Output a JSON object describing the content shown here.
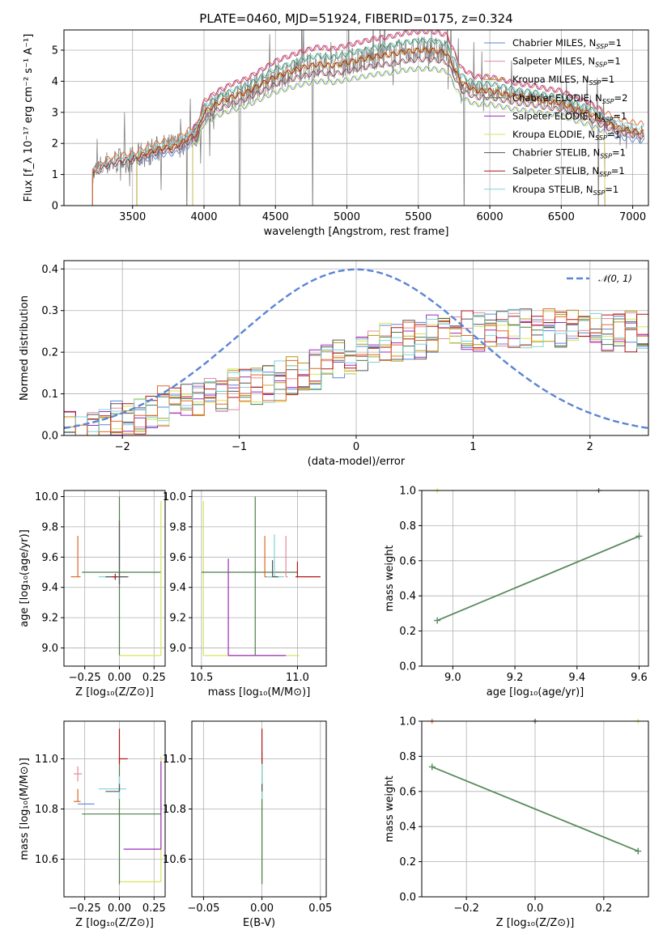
{
  "colors": {
    "chabrier_miles": "#5b84d6",
    "salpeter_miles": "#e8889d",
    "kroupa_miles": "#b19a17",
    "chabrier_elodie": "#4d7c4a",
    "salpeter_elodie": "#9b2bc0",
    "kroupa_elodie": "#d8e35a",
    "chabrier_stelib": "#555555",
    "salpeter_stelib": "#b01515",
    "kroupa_stelib": "#7fd3d8",
    "orange": "#e0692a",
    "data": "#808080",
    "gauss": "#5b84d6",
    "green_line": "#5a8a5e"
  },
  "chart_data": [
    {
      "id": "spectrum",
      "type": "line",
      "title": "PLATE=0460, MJD=51924, FIBERID=0175, z=0.324",
      "xlabel": "wavelength [Angstrom, rest frame]",
      "ylabel": "Flux [f_λ 10⁻¹⁷ erg cm⁻² s⁻¹ A⁻¹]",
      "xlim": [
        3020,
        7110
      ],
      "ylim": [
        0,
        5.65
      ],
      "xticks": [
        "3500",
        "4000",
        "4500",
        "5000",
        "5500",
        "6000",
        "6500",
        "7000"
      ],
      "yticks": [
        "0",
        "1",
        "2",
        "3",
        "4",
        "5"
      ],
      "legend_position": "upper-right",
      "legend": [
        {
          "label": "Chabrier MILES, N",
          "sub": "SSP",
          "tail": "=1",
          "color_key": "chabrier_miles"
        },
        {
          "label": "Salpeter MILES, N",
          "sub": "SSP",
          "tail": "=1",
          "color_key": "salpeter_miles"
        },
        {
          "label": "Kroupa MILES, N",
          "sub": "SSP",
          "tail": "=1",
          "color_key": "kroupa_miles"
        },
        {
          "label": "Chabrier ELODIE, N",
          "sub": "SSP",
          "tail": "=2",
          "color_key": "chabrier_elodie"
        },
        {
          "label": "Salpeter ELODIE, N",
          "sub": "SSP",
          "tail": "=1",
          "color_key": "salpeter_elodie"
        },
        {
          "label": "Kroupa ELODIE, N",
          "sub": "SSP",
          "tail": "=1",
          "color_key": "kroupa_elodie"
        },
        {
          "label": "Chabrier STELIB, N",
          "sub": "SSP",
          "tail": "=1",
          "color_key": "chabrier_stelib"
        },
        {
          "label": "Salpeter STELIB, N",
          "sub": "SSP",
          "tail": "=1",
          "color_key": "salpeter_stelib"
        },
        {
          "label": "Kroupa STELIB, N",
          "sub": "SSP",
          "tail": "=1",
          "color_key": "kroupa_stelib"
        }
      ],
      "continuum_x": [
        3220,
        3300,
        3400,
        3500,
        3600,
        3700,
        3800,
        3900,
        3950,
        4000,
        4100,
        4200,
        4300,
        4400,
        4500,
        4600,
        4700,
        4800,
        4900,
        5000,
        5100,
        5200,
        5300,
        5400,
        5500,
        5600,
        5700,
        5800,
        5900,
        6000,
        6100,
        6200,
        6300,
        6400,
        6500,
        6600,
        6700,
        6800,
        6900,
        7000,
        7080
      ],
      "continuum_y": [
        1.0,
        1.3,
        1.45,
        1.5,
        1.7,
        1.85,
        1.9,
        2.2,
        2.3,
        3.0,
        3.3,
        3.5,
        3.65,
        3.9,
        4.15,
        4.3,
        4.45,
        4.55,
        4.5,
        4.6,
        4.7,
        4.8,
        4.85,
        4.95,
        5.0,
        5.0,
        4.9,
        3.95,
        3.7,
        3.7,
        3.6,
        3.5,
        3.45,
        3.35,
        3.3,
        3.1,
        2.95,
        2.7,
        2.5,
        2.4,
        2.35
      ],
      "data_dropouts": [
        3210,
        3880,
        4250,
        4760,
        5820,
        6760
      ]
    },
    {
      "id": "residuals",
      "type": "histogram",
      "xlabel": "(data-model)/error",
      "ylabel": "Normed distribution",
      "xlim": [
        -2.5,
        2.5
      ],
      "ylim": [
        0,
        0.42
      ],
      "xticks": [
        "−2",
        "−1",
        "0",
        "1",
        "2"
      ],
      "yticks": [
        "0.0",
        "0.1",
        "0.2",
        "0.3",
        "0.4"
      ],
      "legend": [
        {
          "label": "𝒩(0, 1)",
          "color_key": "gauss"
        }
      ],
      "bin_width": 0.1,
      "bin_start": -2.5,
      "base_profile": [
        0.01,
        0.01,
        0.02,
        0.03,
        0.04,
        0.04,
        0.05,
        0.06,
        0.07,
        0.07,
        0.08,
        0.08,
        0.09,
        0.1,
        0.11,
        0.11,
        0.12,
        0.12,
        0.13,
        0.14,
        0.15,
        0.16,
        0.17,
        0.18,
        0.19,
        0.2,
        0.21,
        0.22,
        0.22,
        0.23,
        0.23,
        0.24,
        0.24,
        0.25,
        0.25,
        0.25,
        0.26,
        0.26,
        0.26,
        0.26,
        0.26,
        0.26,
        0.26,
        0.26,
        0.26,
        0.26,
        0.25,
        0.25,
        0.25,
        0.25
      ]
    },
    {
      "id": "age_vs_Z",
      "type": "errorbar",
      "xlabel": "Z [log₁₀(Z/Z⊙)]",
      "ylabel": "age  [log₁₀(age/yr)]",
      "xlim": [
        -0.4,
        0.33
      ],
      "ylim": [
        8.88,
        10.04
      ],
      "xticks": [
        "−0.25",
        "0.00",
        "0.25"
      ],
      "yticks": [
        "9.0",
        "9.2",
        "9.4",
        "9.6",
        "9.8",
        "10.0"
      ],
      "points": [
        {
          "color_key": "orange",
          "x": -0.3,
          "xerr": [
            0.05,
            0.02
          ],
          "y": 9.47,
          "yerr": [
            0.0,
            0.27
          ]
        },
        {
          "color_key": "chabrier_elodie",
          "x": 0.0,
          "xerr": [
            0.27,
            0.3
          ],
          "y": 9.5,
          "yerr": [
            0.55,
            0.5
          ]
        },
        {
          "color_key": "kroupa_elodie",
          "x": 0.3,
          "xerr": [
            0.3,
            0.0
          ],
          "y": 8.95,
          "yerr": [
            0.0,
            1.02
          ]
        },
        {
          "color_key": "kroupa_stelib",
          "x": 0.0,
          "xerr": [
            0.15,
            0.07
          ],
          "y": 9.47,
          "yerr": [
            0.03,
            0.28
          ]
        },
        {
          "color_key": "chabrier_stelib",
          "x": 0.0,
          "xerr": [
            0.1,
            0.06
          ],
          "y": 9.47,
          "yerr": [
            0.05,
            0.37
          ]
        },
        {
          "color_key": "salpeter_stelib",
          "x": -0.03,
          "xerr": [
            0.02,
            0.01
          ],
          "y": 9.47,
          "yerr": [
            0.02,
            0.02
          ]
        }
      ]
    },
    {
      "id": "age_vs_mass",
      "type": "errorbar",
      "xlabel": "mass [log₁₀(M/M⊙)]",
      "ylabel": "",
      "xlim": [
        10.45,
        11.15
      ],
      "ylim": [
        8.88,
        10.04
      ],
      "xticks": [
        "10.5",
        "11.0"
      ],
      "yticks": [
        "9.0",
        "9.2",
        "9.4",
        "9.6",
        "9.8",
        "10.0"
      ],
      "points": [
        {
          "color_key": "kroupa_elodie",
          "x": 10.51,
          "xerr": [
            0.0,
            0.5
          ],
          "y": 8.95,
          "yerr": [
            0.0,
            1.02
          ]
        },
        {
          "color_key": "salpeter_elodie",
          "x": 10.64,
          "xerr": [
            0.0,
            0.3
          ],
          "y": 8.95,
          "yerr": [
            0.0,
            0.64
          ]
        },
        {
          "color_key": "chabrier_elodie",
          "x": 10.78,
          "xerr": [
            0.28,
            0.22
          ],
          "y": 9.5,
          "yerr": [
            0.55,
            0.5
          ]
        },
        {
          "color_key": "orange",
          "x": 10.83,
          "xerr": [
            0.0,
            0.05
          ],
          "y": 9.47,
          "yerr": [
            0.0,
            0.27
          ]
        },
        {
          "color_key": "kroupa_stelib",
          "x": 10.88,
          "xerr": [
            0.04,
            0.05
          ],
          "y": 9.47,
          "yerr": [
            0.0,
            0.28
          ]
        },
        {
          "color_key": "salpeter_miles",
          "x": 10.94,
          "xerr": [
            0.0,
            0.01
          ],
          "y": 9.47,
          "yerr": [
            0.0,
            0.27
          ]
        },
        {
          "color_key": "salpeter_stelib",
          "x": 11.0,
          "xerr": [
            0.01,
            0.12
          ],
          "y": 9.47,
          "yerr": [
            0.0,
            0.1
          ]
        },
        {
          "color_key": "chabrier_stelib",
          "x": 10.87,
          "xerr": [
            0.0,
            0.03
          ],
          "y": 9.47,
          "yerr": [
            0.0,
            0.11
          ]
        }
      ]
    },
    {
      "id": "weight_vs_age",
      "type": "line",
      "xlabel": "age  [log₁₀(age/yr)]",
      "ylabel": "mass weight",
      "xlim": [
        8.9,
        9.63
      ],
      "ylim": [
        0.0,
        1.0
      ],
      "xticks": [
        "9.0",
        "9.2",
        "9.4",
        "9.6"
      ],
      "yticks": [
        "0.0",
        "0.2",
        "0.4",
        "0.6",
        "0.8",
        "1.0"
      ],
      "series": [
        {
          "color_key": "chabrier_elodie",
          "x": [
            8.95,
            9.6
          ],
          "y": [
            0.26,
            0.74
          ]
        }
      ],
      "single_markers": [
        {
          "color_key": "kroupa_elodie",
          "x": 8.95,
          "y": 1.0
        },
        {
          "color_key": "chabrier_stelib",
          "x": 9.47,
          "y": 1.0
        }
      ]
    },
    {
      "id": "mass_vs_Z",
      "type": "errorbar",
      "xlabel": "Z [log₁₀(Z/Z⊙)]",
      "ylabel": "mass [log₁₀(M/M⊙)]",
      "xlim": [
        -0.4,
        0.33
      ],
      "ylim": [
        10.45,
        11.15
      ],
      "xticks": [
        "−0.25",
        "0.00",
        "0.25"
      ],
      "yticks": [
        "10.6",
        "10.8",
        "11.0"
      ],
      "points": [
        {
          "color_key": "salpeter_miles",
          "x": -0.3,
          "xerr": [
            0.03,
            0.03
          ],
          "y": 10.94,
          "yerr": [
            0.03,
            0.03
          ]
        },
        {
          "color_key": "orange",
          "x": -0.3,
          "xerr": [
            0.03,
            0.02
          ],
          "y": 10.83,
          "yerr": [
            0.0,
            0.05
          ]
        },
        {
          "color_key": "chabrier_miles",
          "x": -0.3,
          "xerr": [
            0.0,
            0.12
          ],
          "y": 10.82,
          "yerr": [
            0.0,
            0.0
          ]
        },
        {
          "color_key": "kroupa_elodie",
          "x": 0.3,
          "xerr": [
            0.3,
            0.0
          ],
          "y": 10.51,
          "yerr": [
            0.0,
            0.5
          ]
        },
        {
          "color_key": "chabrier_elodie",
          "x": 0.0,
          "xerr": [
            0.27,
            0.3
          ],
          "y": 10.78,
          "yerr": [
            0.28,
            0.22
          ]
        },
        {
          "color_key": "salpeter_elodie",
          "x": 0.3,
          "xerr": [
            0.27,
            0.0
          ],
          "y": 10.64,
          "yerr": [
            0.0,
            0.35
          ]
        },
        {
          "color_key": "kroupa_stelib",
          "x": 0.0,
          "xerr": [
            0.15,
            0.05
          ],
          "y": 10.88,
          "yerr": [
            0.04,
            0.05
          ]
        },
        {
          "color_key": "chabrier_stelib",
          "x": 0.0,
          "xerr": [
            0.1,
            0.0
          ],
          "y": 10.87,
          "yerr": [
            0.0,
            0.03
          ]
        },
        {
          "color_key": "salpeter_stelib",
          "x": 0.0,
          "xerr": [
            0.0,
            0.06
          ],
          "y": 11.0,
          "yerr": [
            0.02,
            0.12
          ]
        }
      ]
    },
    {
      "id": "mass_vs_ebv",
      "type": "errorbar",
      "xlabel": "E(B-V)",
      "ylabel": "",
      "xlim": [
        -0.06,
        0.055
      ],
      "ylim": [
        10.45,
        11.15
      ],
      "xticks": [
        "−0.05",
        "0.00",
        "0.05"
      ],
      "yticks": [
        "10.6",
        "10.8",
        "11.0"
      ],
      "points": [
        {
          "color_key": "kroupa_elodie",
          "x": 0.0,
          "xerr": [
            0,
            0
          ],
          "y": 10.51,
          "yerr": [
            0.0,
            0.5
          ]
        },
        {
          "color_key": "chabrier_elodie",
          "x": 0.0,
          "xerr": [
            0,
            0
          ],
          "y": 10.78,
          "yerr": [
            0.28,
            0.22
          ]
        },
        {
          "color_key": "kroupa_stelib",
          "x": 0.0,
          "xerr": [
            0,
            0
          ],
          "y": 10.88,
          "yerr": [
            0.04,
            0.15
          ]
        },
        {
          "color_key": "salpeter_stelib",
          "x": 0.0,
          "xerr": [
            0,
            0
          ],
          "y": 11.0,
          "yerr": [
            0.02,
            0.12
          ]
        },
        {
          "color_key": "chabrier_stelib",
          "x": 0.0,
          "xerr": [
            0,
            0
          ],
          "y": 10.87,
          "yerr": [
            0.0,
            0.03
          ]
        }
      ]
    },
    {
      "id": "weight_vs_Z",
      "type": "line",
      "xlabel": "Z [log₁₀(Z/Z⊙)]",
      "ylabel": "mass weight",
      "xlim": [
        -0.33,
        0.33
      ],
      "ylim": [
        0.0,
        1.0
      ],
      "xticks": [
        "−0.2",
        "0.0",
        "0.2"
      ],
      "yticks": [
        "0.0",
        "0.2",
        "0.4",
        "0.6",
        "0.8",
        "1.0"
      ],
      "series": [
        {
          "color_key": "chabrier_elodie",
          "x": [
            -0.3,
            0.3
          ],
          "y": [
            0.74,
            0.26
          ]
        }
      ],
      "single_markers": [
        {
          "color_key": "orange",
          "x": -0.3,
          "y": 1.0
        },
        {
          "color_key": "chabrier_stelib",
          "x": 0.0,
          "y": 1.0
        },
        {
          "color_key": "kroupa_elodie",
          "x": 0.3,
          "y": 1.0
        }
      ]
    }
  ]
}
